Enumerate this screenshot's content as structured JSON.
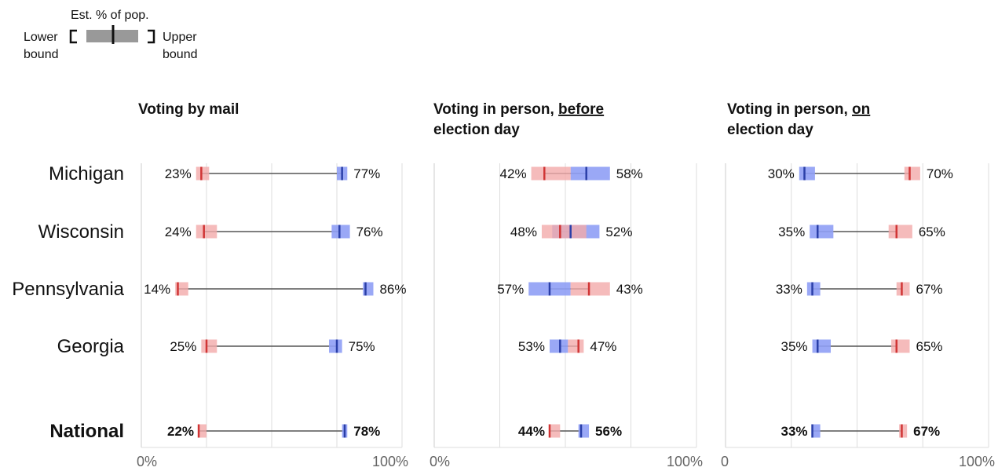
{
  "legend": {
    "estimate_label": "Est. % of pop.",
    "lower_label": [
      "Lower",
      "bound"
    ],
    "upper_label": [
      "Upper",
      "bound"
    ]
  },
  "colors": {
    "dem_fill": "#8f9ff5",
    "dem_mark": "#2a3fa8",
    "rep_fill": "#f2aaaa",
    "rep_mark": "#d03535",
    "connector": "#555555",
    "gridline": "#dddddd",
    "legend_bar": "#999999"
  },
  "chart_data": {
    "type": "range-dot",
    "x_tick_labels": [
      [
        "0%",
        "100%"
      ],
      [
        "0%",
        "100%"
      ],
      [
        "0",
        "100%"
      ]
    ],
    "xlim": [
      0,
      100
    ],
    "rows": [
      {
        "label": "Michigan",
        "bold": false
      },
      {
        "label": "Wisconsin",
        "bold": false
      },
      {
        "label": "Pennsylvania",
        "bold": false
      },
      {
        "label": "Georgia",
        "bold": false
      },
      {
        "label": "National",
        "bold": true
      }
    ],
    "panels": [
      {
        "title_parts": [
          [
            {
              "text": "Voting by mail",
              "u": false
            }
          ]
        ],
        "data": [
          {
            "rep": 23,
            "rep_lo": 21,
            "rep_hi": 26,
            "dem": 77,
            "dem_lo": 75,
            "dem_hi": 79,
            "rep_label": "23%",
            "dem_label": "77%"
          },
          {
            "rep": 24,
            "rep_lo": 21,
            "rep_hi": 29,
            "dem": 76,
            "dem_lo": 73,
            "dem_hi": 80,
            "rep_label": "24%",
            "dem_label": "76%"
          },
          {
            "rep": 14,
            "rep_lo": 13,
            "rep_hi": 18,
            "dem": 86,
            "dem_lo": 85,
            "dem_hi": 89,
            "rep_label": "14%",
            "dem_label": "86%"
          },
          {
            "rep": 25,
            "rep_lo": 23,
            "rep_hi": 29,
            "dem": 75,
            "dem_lo": 72,
            "dem_hi": 77,
            "rep_label": "25%",
            "dem_label": "75%"
          },
          {
            "rep": 22,
            "rep_lo": 22,
            "rep_hi": 25,
            "dem": 78,
            "dem_lo": 77,
            "dem_hi": 79,
            "rep_label": "22%",
            "dem_label": "78%"
          }
        ]
      },
      {
        "title_parts": [
          [
            {
              "text": "Voting in person, ",
              "u": false
            },
            {
              "text": "before",
              "u": true
            }
          ],
          [
            {
              "text": "election day",
              "u": false
            }
          ]
        ],
        "data": [
          {
            "rep": 42,
            "rep_lo": 37,
            "rep_hi": 52,
            "dem": 58,
            "dem_lo": 52,
            "dem_hi": 67,
            "rep_label": "42%",
            "dem_label": "58%"
          },
          {
            "rep": 48,
            "rep_lo": 41,
            "rep_hi": 58,
            "dem": 52,
            "dem_lo": 45,
            "dem_hi": 63,
            "rep_label": "48%",
            "dem_label": "52%"
          },
          {
            "rep": 43,
            "rep_lo": 52,
            "rep_hi": 67,
            "dem": 57,
            "dem_lo": 36,
            "dem_hi": 52,
            "rep_label": "43%",
            "dem_label": "57%",
            "rep_at": 59,
            "dem_at": 44
          },
          {
            "rep": 47,
            "rep_lo": 51,
            "rep_hi": 57,
            "dem": 53,
            "dem_lo": 44,
            "dem_hi": 51,
            "rep_label": "47%",
            "dem_label": "53%",
            "rep_at": 55,
            "dem_at": 48
          },
          {
            "rep": 44,
            "rep_lo": 44,
            "rep_hi": 48,
            "dem": 56,
            "dem_lo": 55,
            "dem_hi": 59,
            "rep_label": "44%",
            "dem_label": "56%"
          }
        ]
      },
      {
        "title_parts": [
          [
            {
              "text": "Voting in person, ",
              "u": false
            },
            {
              "text": "on",
              "u": true
            }
          ],
          [
            {
              "text": "election day",
              "u": false
            }
          ]
        ],
        "data": [
          {
            "rep": 70,
            "rep_lo": 68,
            "rep_hi": 74,
            "dem": 30,
            "dem_lo": 28,
            "dem_hi": 34,
            "rep_label": "70%",
            "dem_label": "30%"
          },
          {
            "rep": 65,
            "rep_lo": 62,
            "rep_hi": 71,
            "dem": 35,
            "dem_lo": 32,
            "dem_hi": 41,
            "rep_label": "65%",
            "dem_label": "35%"
          },
          {
            "rep": 67,
            "rep_lo": 65,
            "rep_hi": 70,
            "dem": 33,
            "dem_lo": 31,
            "dem_hi": 36,
            "rep_label": "67%",
            "dem_label": "33%"
          },
          {
            "rep": 65,
            "rep_lo": 63,
            "rep_hi": 70,
            "dem": 35,
            "dem_lo": 33,
            "dem_hi": 40,
            "rep_label": "65%",
            "dem_label": "35%"
          },
          {
            "rep": 67,
            "rep_lo": 66,
            "rep_hi": 69,
            "dem": 33,
            "dem_lo": 33,
            "dem_hi": 36,
            "rep_label": "67%",
            "dem_label": "33%"
          }
        ]
      }
    ]
  }
}
